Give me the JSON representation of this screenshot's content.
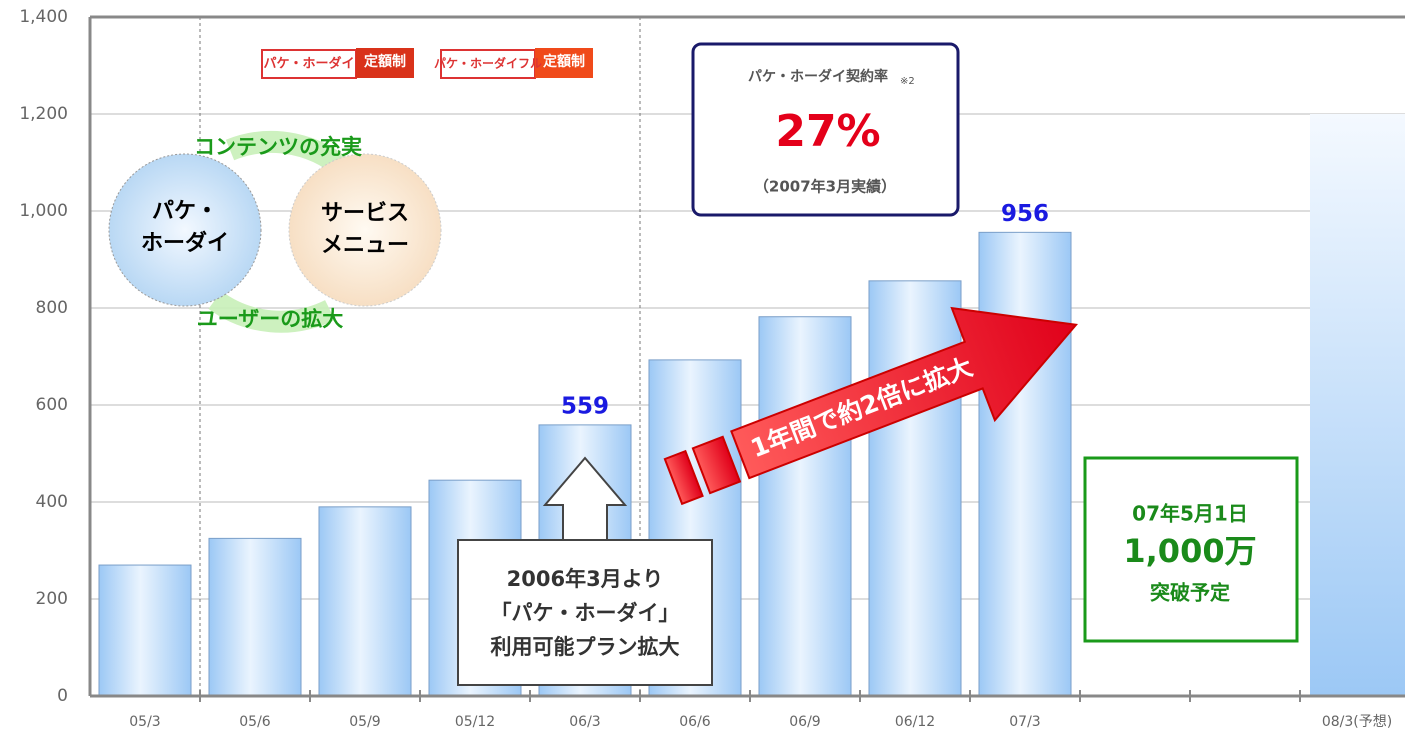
{
  "chart_data": {
    "type": "bar",
    "categories": [
      "05/3",
      "05/6",
      "05/9",
      "05/12",
      "06/3",
      "06/6",
      "06/9",
      "06/12",
      "07/3",
      null,
      null,
      "08/3(予想)"
    ],
    "values": [
      270,
      325,
      390,
      445,
      559,
      693,
      782,
      856,
      956,
      null,
      null,
      1200
    ],
    "color": "#9cc8f5",
    "ylim": [
      0,
      1400
    ],
    "yticks": [
      0,
      200,
      400,
      600,
      800,
      {
        "value": 1000,
        "label": "1,000"
      },
      {
        "value": 1200,
        "label": "1,200"
      },
      {
        "value": 1400,
        "label": "1,400"
      }
    ],
    "grid": true,
    "annotations": {
      "logo1": [
        "パケ・ホーダイ",
        "定額制"
      ],
      "logo2": [
        "パケ・ホーダイフル",
        "定額制"
      ],
      "rate_box": {
        "title": "パケ・ホーダイ契約率",
        "note": "※2",
        "value": "27%",
        "period": "（2007年3月実績）"
      },
      "cycle": {
        "circle1": [
          "パケ・",
          "ホーダイ"
        ],
        "circle2": [
          "サービス",
          "メニュー"
        ],
        "top": "コンテンツの充実",
        "bottom": "ユーザーの拡大"
      },
      "callout": [
        "2006年3月より",
        "「パケ・ホーダイ」",
        "利用可能プラン拡大"
      ],
      "arrow": "1年間で約2倍に拡大",
      "milestone": [
        "07年5月1日",
        "1,000万",
        "突破予定"
      ]
    }
  }
}
